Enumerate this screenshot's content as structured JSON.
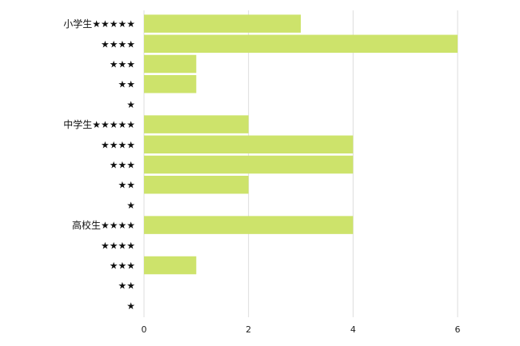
{
  "chart_data": {
    "type": "bar",
    "orientation": "horizontal",
    "categories": [
      "小学生★★★★★",
      "★★★★",
      "★★★",
      "★★",
      "★",
      "中学生★★★★★",
      "★★★★",
      "★★★",
      "★★",
      "★",
      "高校生★★★★",
      "★★★★",
      "★★★",
      "★★",
      "★"
    ],
    "values": [
      3,
      6,
      1,
      1,
      0,
      2,
      4,
      4,
      2,
      0,
      4,
      0,
      1,
      0,
      0
    ],
    "xticks": [
      "0",
      "2",
      "4",
      "6"
    ],
    "xlim": [
      0,
      6
    ],
    "title": "",
    "xlabel": "",
    "ylabel": "",
    "grid": true,
    "colors": {
      "bar": "#cde36b",
      "grid": "#dddddd"
    }
  }
}
